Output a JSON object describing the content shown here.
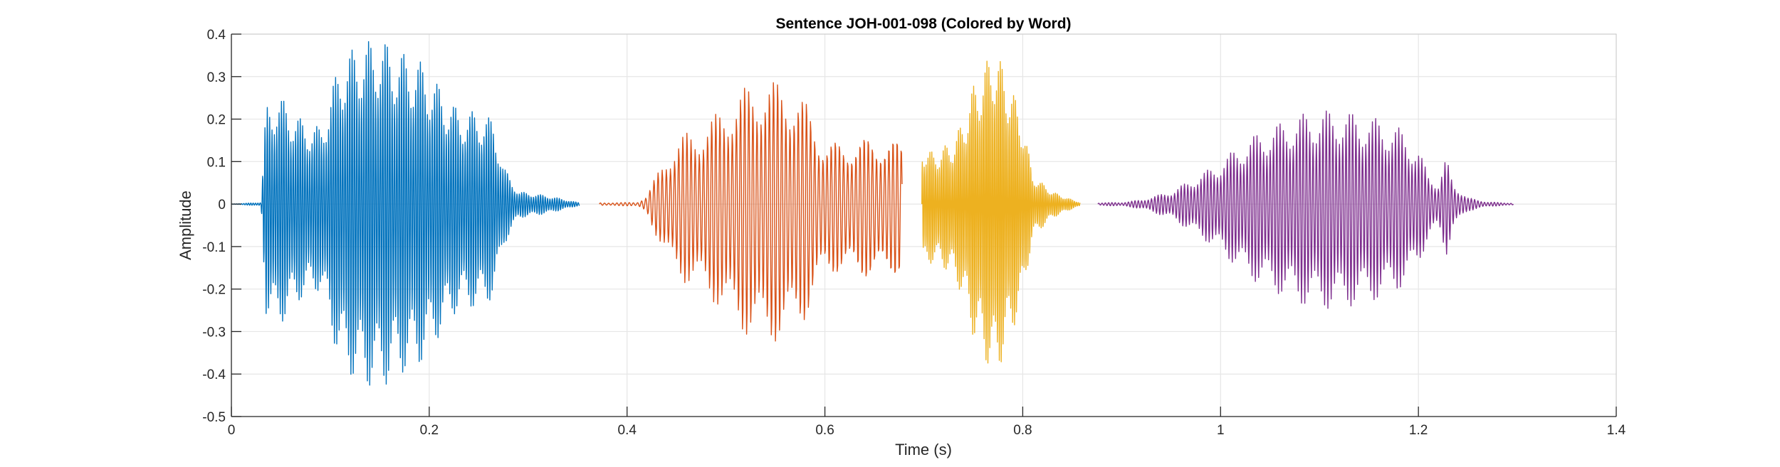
{
  "chart_data": {
    "type": "line",
    "title": "Sentence JOH-001-098 (Colored by Word)",
    "xlabel": "Time (s)",
    "ylabel": "Amplitude",
    "xlim": [
      0,
      1.4
    ],
    "ylim": [
      -0.5,
      0.4
    ],
    "xticks": [
      0,
      0.2,
      0.4,
      0.6,
      0.8,
      1,
      1.2,
      1.4
    ],
    "xtick_labels": [
      "0",
      "0.2",
      "0.4",
      "0.6",
      "0.8",
      "1",
      "1.2",
      "1.4"
    ],
    "yticks": [
      -0.5,
      -0.4,
      -0.3,
      -0.2,
      -0.1,
      0,
      0.1,
      0.2,
      0.3,
      0.4
    ],
    "ytick_labels": [
      "-0.5",
      "-0.4",
      "-0.3",
      "-0.2",
      "-0.1",
      "0",
      "0.1",
      "0.2",
      "0.3",
      "0.4"
    ],
    "grid": true,
    "series": [
      {
        "color": "#0072BD",
        "x_range": [
          0.0,
          0.352
        ],
        "cycles_per_second": 420,
        "envelope": [
          [
            0.0,
            0.0
          ],
          [
            0.03,
            0.004
          ],
          [
            0.035,
            0.23
          ],
          [
            0.045,
            0.26
          ],
          [
            0.055,
            0.24
          ],
          [
            0.07,
            0.2
          ],
          [
            0.09,
            0.18
          ],
          [
            0.11,
            0.34
          ],
          [
            0.13,
            0.38
          ],
          [
            0.15,
            0.39
          ],
          [
            0.17,
            0.36
          ],
          [
            0.19,
            0.34
          ],
          [
            0.21,
            0.28
          ],
          [
            0.23,
            0.22
          ],
          [
            0.25,
            0.22
          ],
          [
            0.265,
            0.2
          ],
          [
            0.275,
            0.09
          ],
          [
            0.29,
            0.03
          ],
          [
            0.32,
            0.02
          ],
          [
            0.352,
            0.003
          ]
        ]
      },
      {
        "color": "#D95319",
        "x_range": [
          0.372,
          0.678
        ],
        "cycles_per_second": 240,
        "envelope": [
          [
            0.372,
            0.003
          ],
          [
            0.41,
            0.004
          ],
          [
            0.42,
            0.02
          ],
          [
            0.44,
            0.12
          ],
          [
            0.46,
            0.17
          ],
          [
            0.48,
            0.19
          ],
          [
            0.5,
            0.24
          ],
          [
            0.52,
            0.28
          ],
          [
            0.54,
            0.3
          ],
          [
            0.56,
            0.29
          ],
          [
            0.58,
            0.25
          ],
          [
            0.6,
            0.15
          ],
          [
            0.62,
            0.15
          ],
          [
            0.64,
            0.16
          ],
          [
            0.66,
            0.16
          ],
          [
            0.678,
            0.15
          ]
        ]
      },
      {
        "color": "#EDB120",
        "x_range": [
          0.698,
          0.858
        ],
        "cycles_per_second": 520,
        "envelope": [
          [
            0.698,
            0.14
          ],
          [
            0.71,
            0.12
          ],
          [
            0.73,
            0.15
          ],
          [
            0.74,
            0.2
          ],
          [
            0.75,
            0.28
          ],
          [
            0.76,
            0.32
          ],
          [
            0.77,
            0.37
          ],
          [
            0.78,
            0.33
          ],
          [
            0.79,
            0.27
          ],
          [
            0.8,
            0.2
          ],
          [
            0.81,
            0.07
          ],
          [
            0.83,
            0.03
          ],
          [
            0.845,
            0.015
          ],
          [
            0.858,
            0.004
          ]
        ]
      },
      {
        "color": "#7E2F8E",
        "x_range": [
          0.876,
          1.296
        ],
        "cycles_per_second": 300,
        "envelope": [
          [
            0.876,
            0.003
          ],
          [
            0.9,
            0.004
          ],
          [
            0.92,
            0.01
          ],
          [
            0.95,
            0.03
          ],
          [
            0.98,
            0.07
          ],
          [
            1.0,
            0.1
          ],
          [
            1.02,
            0.14
          ],
          [
            1.04,
            0.17
          ],
          [
            1.06,
            0.19
          ],
          [
            1.08,
            0.21
          ],
          [
            1.1,
            0.22
          ],
          [
            1.12,
            0.22
          ],
          [
            1.14,
            0.21
          ],
          [
            1.16,
            0.2
          ],
          [
            1.18,
            0.18
          ],
          [
            1.2,
            0.13
          ],
          [
            1.21,
            0.07
          ],
          [
            1.22,
            0.05
          ],
          [
            1.228,
            0.11
          ],
          [
            1.235,
            0.05
          ],
          [
            1.25,
            0.015
          ],
          [
            1.27,
            0.005
          ],
          [
            1.296,
            0.002
          ]
        ]
      }
    ]
  }
}
